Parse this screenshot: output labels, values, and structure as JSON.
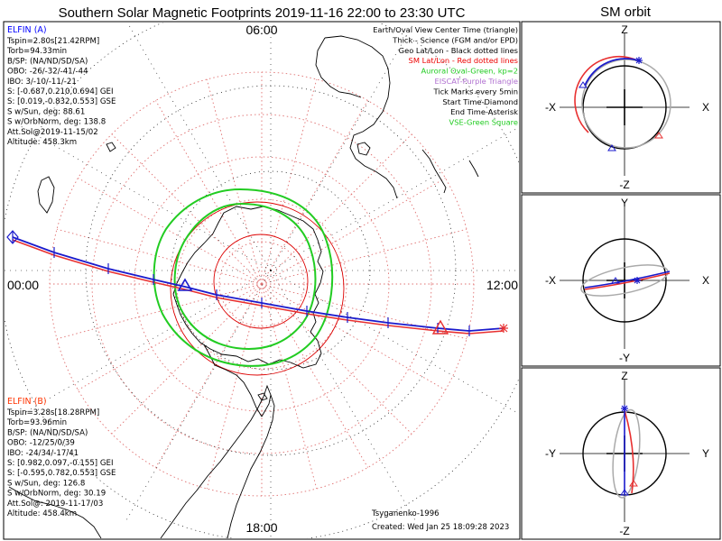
{
  "main_title": "Southern Solar Magnetic Footprints 2019-11-16 22:00 to 23:30 UTC",
  "orbit_title": "SM orbit",
  "time_labels": {
    "top": "06:00",
    "left": "00:00",
    "right": "12:00",
    "bottom": "18:00"
  },
  "colors": {
    "elfin_a": "#0000ff",
    "elfin_b": "#ff3300",
    "blue_trace": "#1a1acc",
    "red_trace": "#e83030",
    "oval": "#22cc22",
    "grid": "#e07070",
    "geo": "#000000",
    "gray": "#aaaaaa"
  },
  "elfin_a": {
    "name": "ELFIN (A)",
    "lines": [
      "Tspin=2.80s[21.42RPM]",
      "Torb=94.33min",
      "B/SP: (NA/ND/SD/SA)",
      "OBO: -26/-32/-41/-44",
      "IBO: 3/-10/-11/-21",
      "S: [-0.687,0.210,0.694] GEI",
      "S: [0.019,-0.832,0.553] GSE",
      "S w/Sun, deg: 88.61",
      "S w/OrbNorm, deg: 138.8",
      "Att.Sol@2019-11-15/02",
      "Altitude: 458.3km"
    ]
  },
  "elfin_b": {
    "name": "ELFIN (B)",
    "lines": [
      "Tspin=3.28s[18.28RPM]",
      "Torb=93.96min",
      "B/SP: (NA/ND/SD/SA)",
      "OBO: -12/25/0/39",
      "IBO: -24/34/-17/41",
      "S: [0.982,0.097,-0.155] GEI",
      "S: [-0.595,0.782,0.553] GSE",
      "S w/Sun, deg: 126.8",
      "S w/OrbNorm, deg: 30.19",
      "Att.Sol@: 2019-11-17/03",
      "Altitude: 458.4km"
    ]
  },
  "legend": [
    {
      "text": "Earth/Oval View Center Time (triangle)",
      "color": "#000000"
    },
    {
      "text": "Thick - Science (FGM and/or EPD)",
      "color": "#000000"
    },
    {
      "text": "Geo Lat/Lon - Black dotted lines",
      "color": "#000000"
    },
    {
      "text": "SM Lat/Lon - Red dotted lines",
      "color": "#ee0000"
    },
    {
      "text": "Auroral Oval-Green, kp=2",
      "color": "#22cc22"
    },
    {
      "text": "EISCAT-Purple Triangle",
      "color": "#b070d0"
    },
    {
      "text": "Tick Marks every 5min",
      "color": "#000000"
    },
    {
      "text": "Start Time-Diamond",
      "color": "#000000"
    },
    {
      "text": "End Time-Asterisk",
      "color": "#000000"
    },
    {
      "text": "VSE-Green Square",
      "color": "#22cc22"
    }
  ],
  "credits": {
    "model": "Tsyganenko-1996",
    "created": "Created: Wed Jan 25 18:09:28 2023"
  },
  "orbit_panels": [
    {
      "top": "Z",
      "bottom": "-Z",
      "left": "-X",
      "right": "X"
    },
    {
      "top": "Y",
      "bottom": "-Y",
      "left": "-X",
      "right": "X"
    },
    {
      "top": "Z",
      "bottom": "-Z",
      "left": "-Y",
      "right": "Y"
    }
  ],
  "chart_data": {
    "type": "polar footprint map (southern hemisphere, SM coordinates)",
    "sm_lat_circles_deg": [
      -40,
      -50,
      -60,
      -70,
      -80
    ],
    "sm_lon_lines_every_deg": 15,
    "auroral_oval": {
      "kp": 2
    },
    "tick_interval_min": 5,
    "series": [
      {
        "name": "ELFIN (A)",
        "color": "#0000ff"
      },
      {
        "name": "ELFIN (B)",
        "color": "#ff3300"
      }
    ]
  }
}
